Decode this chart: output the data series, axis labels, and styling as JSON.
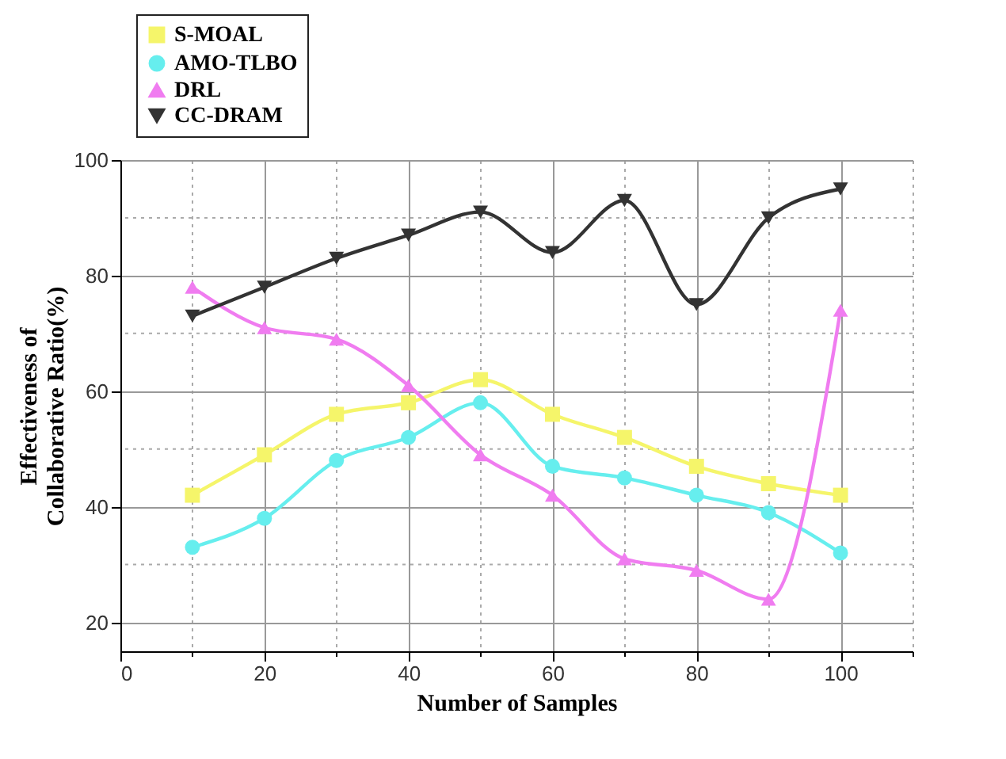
{
  "chart_data": {
    "type": "line",
    "xlabel": "Number of Samples",
    "ylabel": "Effectiveness of Collaborative Ratio(%)",
    "x": [
      10,
      20,
      30,
      40,
      50,
      60,
      70,
      80,
      90,
      100
    ],
    "series": [
      {
        "name": "S-MOAL",
        "color": "#f5f56a",
        "marker": "square",
        "values": [
          42,
          49,
          56,
          58,
          62,
          56,
          52,
          47,
          44,
          42
        ]
      },
      {
        "name": "AMO-TLBO",
        "color": "#66eeee",
        "marker": "circle",
        "values": [
          33,
          38,
          48,
          52,
          58,
          47,
          45,
          42,
          39,
          32
        ]
      },
      {
        "name": "DRL",
        "color": "#f07cf0",
        "marker": "triangle",
        "values": [
          78,
          71,
          69,
          61,
          49,
          42,
          31,
          29,
          24,
          74
        ]
      },
      {
        "name": "CC-DRAM",
        "color": "#333333",
        "marker": "triangle-down",
        "values": [
          73,
          78,
          83,
          87,
          91,
          84,
          93,
          75,
          90,
          95
        ]
      }
    ],
    "xlim": [
      0,
      110
    ],
    "xticks": [
      0,
      {
        "value": 10,
        "label": null
      },
      20,
      {
        "value": 30,
        "label": null
      },
      40,
      {
        "value": 50,
        "label": null
      },
      60,
      {
        "value": 70,
        "label": null
      },
      80,
      {
        "value": 90,
        "label": null
      },
      100,
      {
        "value": 110,
        "label": null
      }
    ],
    "ylim": [
      15,
      100
    ],
    "yticks": [
      20,
      {
        "value": 30,
        "label": null
      },
      40,
      {
        "value": 50,
        "label": null
      },
      60,
      {
        "value": 70,
        "label": null
      },
      80,
      {
        "value": 90,
        "label": null
      },
      100
    ],
    "grid": true,
    "legend": "top left",
    "line_style": "solid"
  }
}
